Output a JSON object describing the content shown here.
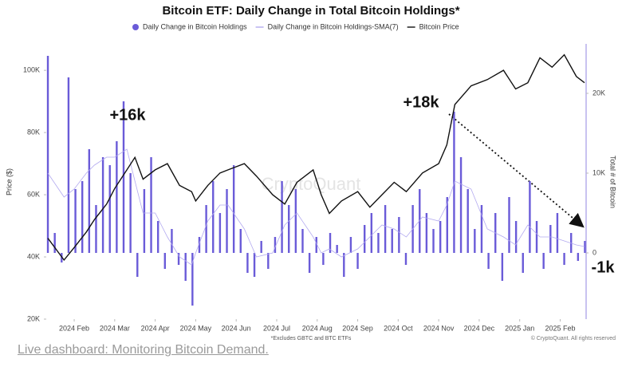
{
  "chart_data": {
    "type": "bar",
    "title": "Bitcoin ETF: Daily Change in Total Bitcoin Holdings*",
    "footnote": "*Excludes GBTC and BTC ETFs",
    "copyright": "© CryptoQuant. All rights reserved",
    "watermark": "CryptoQuant",
    "ylabel": "Price ($)",
    "y2label": "Total # of Bitcoin",
    "annotations": [
      "+16k",
      "+18k",
      "-1k"
    ],
    "xlim": [
      1.31,
      14.64
    ],
    "xticks": [
      {
        "value": 2,
        "label": "2024 Feb"
      },
      {
        "value": 3,
        "label": "2024 Mar"
      },
      {
        "value": 4,
        "label": "2024 Apr"
      },
      {
        "value": 5,
        "label": "2024 May"
      },
      {
        "value": 6,
        "label": "2024 Jun"
      },
      {
        "value": 7,
        "label": "2024 Jul"
      },
      {
        "value": 8,
        "label": "2024 Aug"
      },
      {
        "value": 9,
        "label": "2024 Sep"
      },
      {
        "value": 10,
        "label": "2024 Oct"
      },
      {
        "value": 11,
        "label": "2024 Nov"
      },
      {
        "value": 12,
        "label": "2024 Dec"
      },
      {
        "value": 13,
        "label": "2025 Jan"
      },
      {
        "value": 14,
        "label": "2025 Feb"
      }
    ],
    "ylim": [
      20000,
      108500
    ],
    "yticks": [
      {
        "value": 20000,
        "label": "20K"
      },
      {
        "value": 40000,
        "label": "40K"
      },
      {
        "value": 60000,
        "label": "60K"
      },
      {
        "value": 80000,
        "label": "80K"
      },
      {
        "value": 100000,
        "label": "100K"
      }
    ],
    "y2lim": [
      -8300,
      26200
    ],
    "y2ticks": [
      0,
      {
        "value": 10000,
        "label": "10K"
      },
      {
        "value": 20000,
        "label": "20K"
      }
    ],
    "series": [
      {
        "name": "Daily Change in Bitcoin Holdings",
        "type": "bar",
        "axis": "y2",
        "color": "#6a5bd8",
        "x": [
          1.35,
          1.52,
          1.69,
          1.86,
          2.03,
          2.2,
          2.37,
          2.54,
          2.71,
          2.88,
          3.05,
          3.22,
          3.39,
          3.56,
          3.73,
          3.9,
          4.07,
          4.24,
          4.41,
          4.58,
          4.75,
          4.92,
          5.09,
          5.26,
          5.43,
          5.6,
          5.77,
          5.94,
          6.11,
          6.28,
          6.45,
          6.62,
          6.79,
          6.96,
          7.13,
          7.3,
          7.47,
          7.64,
          7.81,
          7.98,
          8.15,
          8.32,
          8.49,
          8.66,
          8.83,
          9.0,
          9.17,
          9.34,
          9.51,
          9.68,
          9.85,
          10.02,
          10.19,
          10.36,
          10.53,
          10.7,
          10.87,
          11.04,
          11.21,
          11.38,
          11.55,
          11.72,
          11.89,
          12.06,
          12.23,
          12.4,
          12.57,
          12.74,
          12.91,
          13.08,
          13.25,
          13.42,
          13.59,
          13.76,
          13.93,
          14.1,
          14.27,
          14.44,
          14.61
        ],
        "values": [
          24700,
          2500,
          -1200,
          22000,
          8000,
          9000,
          13000,
          6000,
          12000,
          11000,
          14000,
          19000,
          10000,
          -3000,
          8000,
          12000,
          4000,
          -2000,
          3000,
          -1500,
          -3500,
          -6600,
          2000,
          6000,
          9000,
          5000,
          8000,
          11000,
          3000,
          -2500,
          -3000,
          1500,
          -2000,
          2000,
          9000,
          6000,
          8000,
          3000,
          -2500,
          2000,
          -1500,
          2500,
          1000,
          -3000,
          2000,
          -2000,
          3500,
          5000,
          2500,
          6000,
          3000,
          4500,
          -1500,
          6000,
          8000,
          5000,
          3000,
          4000,
          7000,
          17700,
          12000,
          8000,
          3000,
          6000,
          -2000,
          5000,
          -3500,
          7000,
          4000,
          -2500,
          9000,
          4000,
          -2000,
          3500,
          5000,
          -1500,
          2500,
          -1000,
          1500
        ]
      },
      {
        "name": "Daily Change in Bitcoin Holdings-SMA(7)",
        "type": "line",
        "axis": "y2",
        "color": "#b3aaf0",
        "x": [
          1.35,
          1.75,
          2.0,
          2.3,
          2.5,
          2.8,
          3.0,
          3.3,
          3.5,
          3.7,
          4.0,
          4.3,
          4.6,
          4.9,
          5.0,
          5.3,
          5.6,
          5.8,
          6.2,
          6.5,
          6.9,
          7.2,
          7.5,
          7.9,
          8.1,
          8.3,
          8.6,
          9.0,
          9.3,
          9.6,
          9.9,
          10.2,
          10.6,
          11.0,
          11.2,
          11.4,
          11.8,
          12.2,
          12.6,
          12.9,
          13.2,
          13.5,
          13.8,
          14.1,
          14.4,
          14.6
        ],
        "values": [
          10000,
          7000,
          8000,
          10000,
          11000,
          12000,
          12000,
          13000,
          9000,
          5000,
          5000,
          2000,
          -500,
          -1500,
          0,
          4000,
          6000,
          6000,
          3000,
          -500,
          0,
          3500,
          5000,
          2000,
          0,
          500,
          -500,
          500,
          2000,
          3500,
          3000,
          2000,
          4500,
          4000,
          6000,
          9000,
          8000,
          3000,
          2000,
          1000,
          3500,
          2000,
          2000,
          1500,
          1000,
          800
        ]
      },
      {
        "name": "Bitcoin Price",
        "type": "line",
        "axis": "y",
        "color": "#111111",
        "x": [
          1.35,
          1.75,
          2.0,
          2.3,
          2.5,
          2.8,
          3.0,
          3.3,
          3.5,
          3.7,
          4.0,
          4.3,
          4.6,
          4.9,
          5.0,
          5.3,
          5.6,
          5.8,
          6.2,
          6.5,
          6.9,
          7.2,
          7.5,
          7.9,
          8.1,
          8.3,
          8.6,
          9.0,
          9.3,
          9.6,
          9.9,
          10.2,
          10.6,
          11.0,
          11.2,
          11.4,
          11.8,
          12.2,
          12.6,
          12.9,
          13.2,
          13.5,
          13.8,
          14.1,
          14.4,
          14.6
        ],
        "values": [
          46000,
          39000,
          43000,
          48000,
          52000,
          57000,
          62000,
          68000,
          72000,
          65000,
          68000,
          70000,
          63000,
          61000,
          58000,
          63000,
          67000,
          68000,
          70000,
          66000,
          60000,
          57000,
          64000,
          68000,
          60000,
          54000,
          58000,
          61000,
          56000,
          60000,
          64000,
          61000,
          67000,
          70000,
          76000,
          89000,
          95000,
          97000,
          100000,
          94000,
          96000,
          104000,
          101000,
          105000,
          98000,
          96000
        ]
      }
    ]
  },
  "link": "Live dashboard: Monitoring Bitcoin Demand."
}
